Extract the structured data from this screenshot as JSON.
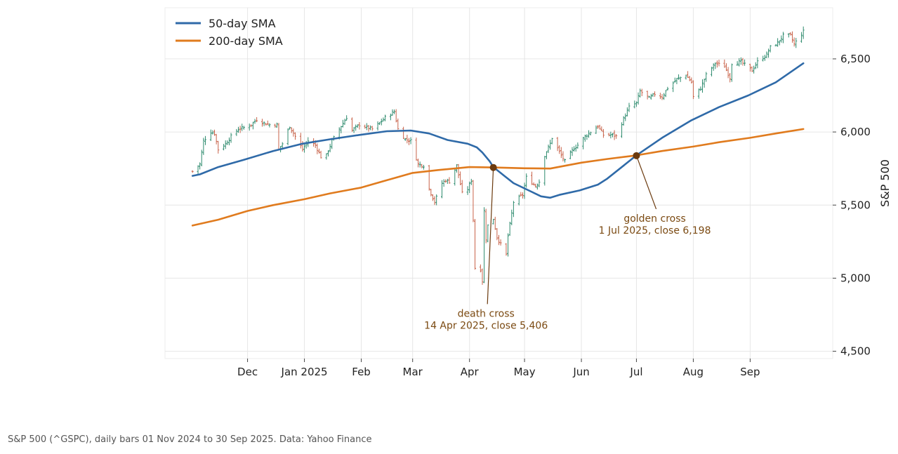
{
  "chart_data": {
    "type": "line",
    "title": "",
    "xlabel": "",
    "ylabel": "S&P 500",
    "ylim": [
      4450,
      6850
    ],
    "xlim": [
      "2024-10-17",
      "2025-10-16"
    ],
    "y_ticks": [
      4500,
      5000,
      5500,
      6000,
      6500
    ],
    "y_tick_labels": [
      "4,500",
      "5,000",
      "5,500",
      "6,000",
      "6,500"
    ],
    "x_ticks": [
      "2024-12-01",
      "2025-01-01",
      "2025-02-01",
      "2025-03-01",
      "2025-04-01",
      "2025-05-01",
      "2025-06-01",
      "2025-07-01",
      "2025-08-01",
      "2025-09-01"
    ],
    "x_tick_labels": [
      "Dec",
      "Jan 2025",
      "Feb",
      "Mar",
      "Apr",
      "May",
      "Jun",
      "Jul",
      "Aug",
      "Sep"
    ],
    "grid": true,
    "legend_position": "top-left",
    "colors": {
      "sma50": "#2f6aa8",
      "sma200": "#e07b1e",
      "up_bar": "#2e8b6e",
      "down_bar": "#c8634a",
      "annotation": "#7b4a12",
      "marker": "#6b3a0e",
      "grid": "#e6e6e6"
    },
    "series": [
      {
        "name": "50-day SMA",
        "points": [
          [
            "2024-11-01",
            5700
          ],
          [
            "2024-11-05",
            5710
          ],
          [
            "2024-11-15",
            5760
          ],
          [
            "2024-11-29",
            5810
          ],
          [
            "2024-12-15",
            5870
          ],
          [
            "2024-12-31",
            5920
          ],
          [
            "2025-01-15",
            5950
          ],
          [
            "2025-01-31",
            5980
          ],
          [
            "2025-02-15",
            6005
          ],
          [
            "2025-02-28",
            6010
          ],
          [
            "2025-03-10",
            5990
          ],
          [
            "2025-03-20",
            5945
          ],
          [
            "2025-03-31",
            5920
          ],
          [
            "2025-04-05",
            5895
          ],
          [
            "2025-04-08",
            5860
          ],
          [
            "2025-04-12",
            5800
          ],
          [
            "2025-04-14",
            5760
          ],
          [
            "2025-04-20",
            5700
          ],
          [
            "2025-04-25",
            5650
          ],
          [
            "2025-05-05",
            5590
          ],
          [
            "2025-05-10",
            5560
          ],
          [
            "2025-05-15",
            5550
          ],
          [
            "2025-05-20",
            5570
          ],
          [
            "2025-05-31",
            5600
          ],
          [
            "2025-06-10",
            5640
          ],
          [
            "2025-06-15",
            5680
          ],
          [
            "2025-06-25",
            5780
          ],
          [
            "2025-07-01",
            5840
          ],
          [
            "2025-07-08",
            5900
          ],
          [
            "2025-07-15",
            5960
          ],
          [
            "2025-07-31",
            6080
          ],
          [
            "2025-08-15",
            6170
          ],
          [
            "2025-08-31",
            6250
          ],
          [
            "2025-09-15",
            6340
          ],
          [
            "2025-09-30",
            6470
          ]
        ]
      },
      {
        "name": "200-day SMA",
        "points": [
          [
            "2024-11-01",
            5360
          ],
          [
            "2024-11-15",
            5400
          ],
          [
            "2024-12-01",
            5460
          ],
          [
            "2024-12-15",
            5500
          ],
          [
            "2025-01-01",
            5540
          ],
          [
            "2025-01-15",
            5580
          ],
          [
            "2025-02-01",
            5620
          ],
          [
            "2025-02-15",
            5670
          ],
          [
            "2025-03-01",
            5720
          ],
          [
            "2025-03-15",
            5740
          ],
          [
            "2025-04-01",
            5760
          ],
          [
            "2025-04-15",
            5757
          ],
          [
            "2025-05-01",
            5752
          ],
          [
            "2025-05-15",
            5750
          ],
          [
            "2025-06-01",
            5790
          ],
          [
            "2025-06-15",
            5815
          ],
          [
            "2025-07-01",
            5840
          ],
          [
            "2025-07-15",
            5870
          ],
          [
            "2025-08-01",
            5900
          ],
          [
            "2025-08-15",
            5930
          ],
          [
            "2025-09-01",
            5960
          ],
          [
            "2025-09-15",
            5990
          ],
          [
            "2025-09-30",
            6020
          ]
        ]
      }
    ],
    "price_series": {
      "name": "S&P 500 daily bars",
      "close_points": [
        [
          "2024-11-01",
          5730
        ],
        [
          "2024-11-05",
          5780
        ],
        [
          "2024-11-07",
          5940
        ],
        [
          "2024-11-11",
          6000
        ],
        [
          "2024-11-13",
          5990
        ],
        [
          "2024-11-15",
          5880
        ],
        [
          "2024-11-19",
          5920
        ],
        [
          "2024-11-22",
          5970
        ],
        [
          "2024-11-26",
          6020
        ],
        [
          "2024-11-29",
          6030
        ],
        [
          "2024-12-03",
          6050
        ],
        [
          "2024-12-06",
          6085
        ],
        [
          "2024-12-10",
          6060
        ],
        [
          "2024-12-13",
          6050
        ],
        [
          "2024-12-17",
          6050
        ],
        [
          "2024-12-18",
          5880
        ],
        [
          "2024-12-20",
          5920
        ],
        [
          "2024-12-24",
          6040
        ],
        [
          "2024-12-27",
          5970
        ],
        [
          "2024-12-31",
          5880
        ],
        [
          "2025-01-03",
          5940
        ],
        [
          "2025-01-07",
          5910
        ],
        [
          "2025-01-10",
          5830
        ],
        [
          "2025-01-13",
          5840
        ],
        [
          "2025-01-16",
          5940
        ],
        [
          "2025-01-21",
          6040
        ],
        [
          "2025-01-24",
          6100
        ],
        [
          "2025-01-27",
          6010
        ],
        [
          "2025-01-31",
          6050
        ],
        [
          "2025-02-04",
          6030
        ],
        [
          "2025-02-07",
          6020
        ],
        [
          "2025-02-11",
          6060
        ],
        [
          "2025-02-14",
          6100
        ],
        [
          "2025-02-19",
          6140
        ],
        [
          "2025-02-21",
          6020
        ],
        [
          "2025-02-25",
          5950
        ],
        [
          "2025-02-28",
          5940
        ],
        [
          "2025-03-04",
          5780
        ],
        [
          "2025-03-07",
          5770
        ],
        [
          "2025-03-10",
          5610
        ],
        [
          "2025-03-13",
          5520
        ],
        [
          "2025-03-17",
          5650
        ],
        [
          "2025-03-19",
          5670
        ],
        [
          "2025-03-21",
          5660
        ],
        [
          "2025-03-25",
          5770
        ],
        [
          "2025-03-28",
          5580
        ],
        [
          "2025-03-31",
          5610
        ],
        [
          "2025-04-02",
          5670
        ],
        [
          "2025-04-03",
          5400
        ],
        [
          "2025-04-04",
          5070
        ],
        [
          "2025-04-07",
          5060
        ],
        [
          "2025-04-08",
          4980
        ],
        [
          "2025-04-09",
          5460
        ],
        [
          "2025-04-10",
          5270
        ],
        [
          "2025-04-11",
          5360
        ],
        [
          "2025-04-14",
          5406
        ],
        [
          "2025-04-16",
          5280
        ],
        [
          "2025-04-21",
          5160
        ],
        [
          "2025-04-22",
          5290
        ],
        [
          "2025-04-25",
          5520
        ],
        [
          "2025-04-30",
          5570
        ],
        [
          "2025-05-02",
          5690
        ],
        [
          "2025-05-07",
          5630
        ],
        [
          "2025-05-09",
          5660
        ],
        [
          "2025-05-12",
          5840
        ],
        [
          "2025-05-15",
          5920
        ],
        [
          "2025-05-16",
          5960
        ],
        [
          "2025-05-21",
          5840
        ],
        [
          "2025-05-23",
          5800
        ],
        [
          "2025-05-28",
          5890
        ],
        [
          "2025-05-30",
          5910
        ],
        [
          "2025-06-03",
          5970
        ],
        [
          "2025-06-06",
          6000
        ],
        [
          "2025-06-10",
          6040
        ],
        [
          "2025-06-13",
          5980
        ],
        [
          "2025-06-18",
          5980
        ],
        [
          "2025-06-20",
          5970
        ],
        [
          "2025-06-24",
          6090
        ],
        [
          "2025-06-27",
          6170
        ],
        [
          "2025-07-01",
          6198
        ],
        [
          "2025-07-03",
          6280
        ],
        [
          "2025-07-08",
          6230
        ],
        [
          "2025-07-11",
          6260
        ],
        [
          "2025-07-15",
          6240
        ],
        [
          "2025-07-18",
          6300
        ],
        [
          "2025-07-23",
          6360
        ],
        [
          "2025-07-28",
          6390
        ],
        [
          "2025-07-31",
          6340
        ],
        [
          "2025-08-01",
          6240
        ],
        [
          "2025-08-05",
          6300
        ],
        [
          "2025-08-08",
          6390
        ],
        [
          "2025-08-13",
          6470
        ],
        [
          "2025-08-18",
          6450
        ],
        [
          "2025-08-21",
          6370
        ],
        [
          "2025-08-22",
          6470
        ],
        [
          "2025-08-27",
          6480
        ],
        [
          "2025-08-29",
          6460
        ],
        [
          "2025-09-02",
          6420
        ],
        [
          "2025-09-05",
          6480
        ],
        [
          "2025-09-10",
          6530
        ],
        [
          "2025-09-12",
          6580
        ],
        [
          "2025-09-16",
          6610
        ],
        [
          "2025-09-19",
          6660
        ],
        [
          "2025-09-23",
          6660
        ],
        [
          "2025-09-25",
          6600
        ],
        [
          "2025-09-30",
          6688
        ]
      ]
    },
    "annotations": [
      {
        "label_line1": "death cross",
        "label_line2": "14 Apr 2025, close 5,406",
        "date": "2025-04-14",
        "value": 5757,
        "text_date": "2025-04-10",
        "text_value": 4765
      },
      {
        "label_line1": "golden cross",
        "label_line2": "1 Jul 2025, close 6,198",
        "date": "2025-07-01",
        "value": 5838,
        "text_date": "2025-07-11",
        "text_value": 5415
      }
    ],
    "caption": "S&P 500 (^GSPC), daily bars 01 Nov 2024 to 30 Sep 2025. Data: Yahoo Finance"
  }
}
